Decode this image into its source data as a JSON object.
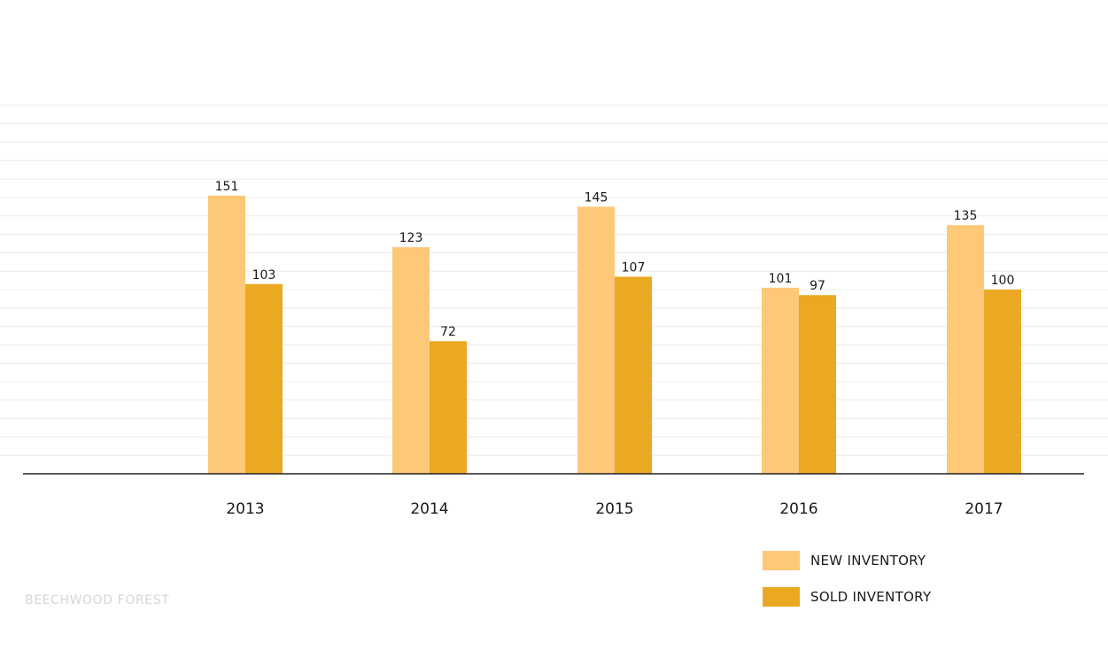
{
  "footer": {
    "text": "BEECHWOOD FOREST"
  },
  "colors": {
    "new_inventory": "#fdc877",
    "sold_inventory": "#eba923",
    "baseline": "#222222",
    "grid": "#ececec",
    "text": "#1a1a1a"
  },
  "chart_data": {
    "type": "bar",
    "title": "",
    "xlabel": "",
    "ylabel": "",
    "categories": [
      "2013",
      "2014",
      "2015",
      "2016",
      "2017"
    ],
    "series": [
      {
        "name": "NEW INVENTORY",
        "color": "#fdc877",
        "values": [
          151,
          123,
          145,
          101,
          135
        ]
      },
      {
        "name": "SOLD INVENTORY",
        "color": "#eba923",
        "values": [
          103,
          72,
          107,
          97,
          100
        ]
      }
    ],
    "ylim": [
      0,
      200
    ],
    "grid": true,
    "legend_position": "bottom-right",
    "data_labels": true
  }
}
